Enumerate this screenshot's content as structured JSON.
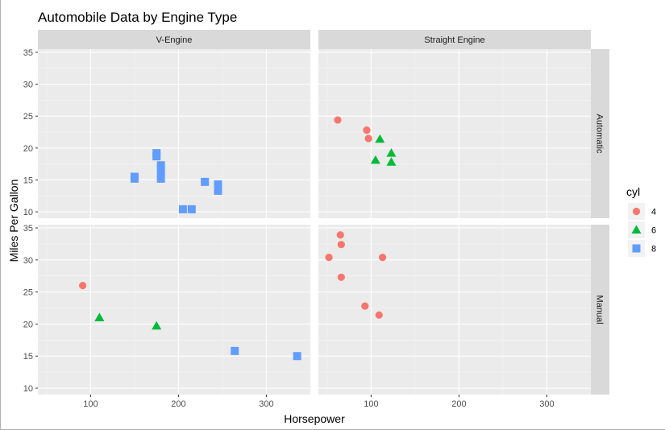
{
  "chart_data": {
    "type": "scatter",
    "title": "Automobile Data by Engine Type",
    "xlabel": "Horsepower",
    "ylabel": "Miles Per Gallon",
    "xlim": [
      40,
      350
    ],
    "ylim": [
      9,
      35.5
    ],
    "x_ticks": [
      100,
      200,
      300
    ],
    "y_ticks": [
      10,
      15,
      20,
      25,
      30,
      35
    ],
    "grid": true,
    "facet_cols": [
      "V-Engine",
      "Straight Engine"
    ],
    "facet_rows": [
      "Automatic",
      "Manual"
    ],
    "legend": {
      "title": "cyl",
      "position": "right",
      "entries": [
        {
          "label": "4",
          "shape": "circle",
          "color": "#F8766D"
        },
        {
          "label": "6",
          "shape": "triangle",
          "color": "#00BA38"
        },
        {
          "label": "8",
          "shape": "square",
          "color": "#619CFF"
        }
      ]
    },
    "panels": [
      {
        "col": "V-Engine",
        "row": "Automatic",
        "points": [
          {
            "x": 175,
            "y": 18.7,
            "cyl": "8"
          },
          {
            "x": 245,
            "y": 14.3,
            "cyl": "8"
          },
          {
            "x": 180,
            "y": 16.4,
            "cyl": "8"
          },
          {
            "x": 180,
            "y": 17.3,
            "cyl": "8"
          },
          {
            "x": 180,
            "y": 15.2,
            "cyl": "8"
          },
          {
            "x": 205,
            "y": 10.4,
            "cyl": "8"
          },
          {
            "x": 215,
            "y": 10.4,
            "cyl": "8"
          },
          {
            "x": 230,
            "y": 14.7,
            "cyl": "8"
          },
          {
            "x": 150,
            "y": 15.5,
            "cyl": "8"
          },
          {
            "x": 150,
            "y": 15.2,
            "cyl": "8"
          },
          {
            "x": 245,
            "y": 13.3,
            "cyl": "8"
          },
          {
            "x": 175,
            "y": 19.2,
            "cyl": "8"
          }
        ]
      },
      {
        "col": "Straight Engine",
        "row": "Automatic",
        "points": [
          {
            "x": 110,
            "y": 21.4,
            "cyl": "6"
          },
          {
            "x": 105,
            "y": 18.1,
            "cyl": "6"
          },
          {
            "x": 62,
            "y": 24.4,
            "cyl": "4"
          },
          {
            "x": 95,
            "y": 22.8,
            "cyl": "4"
          },
          {
            "x": 123,
            "y": 19.2,
            "cyl": "6"
          },
          {
            "x": 123,
            "y": 17.8,
            "cyl": "6"
          },
          {
            "x": 97,
            "y": 21.5,
            "cyl": "4"
          }
        ]
      },
      {
        "col": "V-Engine",
        "row": "Manual",
        "points": [
          {
            "x": 110,
            "y": 21.0,
            "cyl": "6"
          },
          {
            "x": 110,
            "y": 21.0,
            "cyl": "6"
          },
          {
            "x": 91,
            "y": 26.0,
            "cyl": "4"
          },
          {
            "x": 264,
            "y": 15.8,
            "cyl": "8"
          },
          {
            "x": 175,
            "y": 19.7,
            "cyl": "6"
          },
          {
            "x": 335,
            "y": 15.0,
            "cyl": "8"
          }
        ]
      },
      {
        "col": "Straight Engine",
        "row": "Manual",
        "points": [
          {
            "x": 93,
            "y": 22.8,
            "cyl": "4"
          },
          {
            "x": 66,
            "y": 32.4,
            "cyl": "4"
          },
          {
            "x": 52,
            "y": 30.4,
            "cyl": "4"
          },
          {
            "x": 65,
            "y": 33.9,
            "cyl": "4"
          },
          {
            "x": 66,
            "y": 27.3,
            "cyl": "4"
          },
          {
            "x": 113,
            "y": 30.4,
            "cyl": "4"
          },
          {
            "x": 109,
            "y": 21.4,
            "cyl": "4"
          }
        ]
      }
    ]
  }
}
